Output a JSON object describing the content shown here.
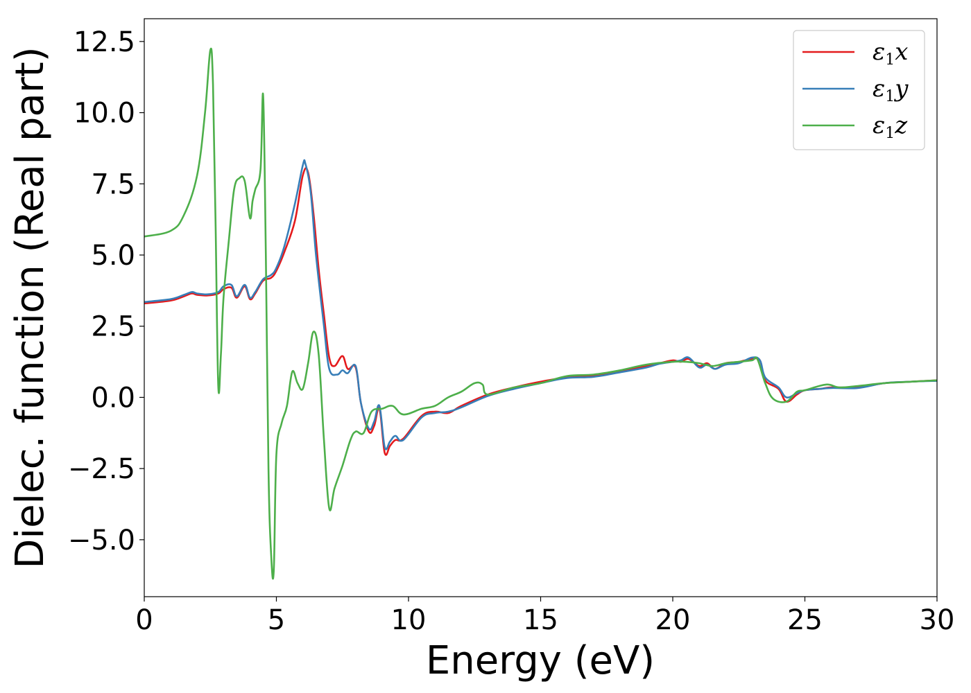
{
  "chart_data": {
    "type": "line",
    "xlabel": "Energy (eV)",
    "ylabel": "Dielec. function (Real part)",
    "xlim": [
      0,
      30
    ],
    "ylim": [
      -7.0,
      13.3
    ],
    "xticks": [
      0,
      5,
      10,
      15,
      20,
      25,
      30
    ],
    "xtick_labels": [
      "0",
      "5",
      "10",
      "15",
      "20",
      "25",
      "30"
    ],
    "yticks": [
      -5.0,
      -2.5,
      0.0,
      2.5,
      5.0,
      7.5,
      10.0,
      12.5
    ],
    "ytick_labels": [
      "−5.0",
      "−2.5",
      "0.0",
      "2.5",
      "5.0",
      "7.5",
      "10.0",
      "12.5"
    ],
    "grid": false,
    "legend_position": "top-right",
    "series": [
      {
        "name_base": "ε",
        "name_sub": "1",
        "name_tail": "x",
        "color": "#e41a1c",
        "x": [
          0,
          1.0,
          1.5,
          1.8,
          2.0,
          2.4,
          2.8,
          3.0,
          3.3,
          3.5,
          3.8,
          4.0,
          4.2,
          4.5,
          4.8,
          5.0,
          5.3,
          5.7,
          6.0,
          6.2,
          6.4,
          6.6,
          6.8,
          7.0,
          7.2,
          7.5,
          7.7,
          8.0,
          8.2,
          8.5,
          8.7,
          8.9,
          9.1,
          9.3,
          9.5,
          9.8,
          10.5,
          11.0,
          11.5,
          12.0,
          13.0,
          14.0,
          15.0,
          16.0,
          17.0,
          18.0,
          19.0,
          19.5,
          20.0,
          20.3,
          20.6,
          21.0,
          21.3,
          21.6,
          22.0,
          22.5,
          23.0,
          23.3,
          23.5,
          24.0,
          24.3,
          24.7,
          25.0,
          25.6,
          26.0,
          27.0,
          28.0,
          29.0,
          30.0
        ],
        "y": [
          3.3,
          3.4,
          3.55,
          3.65,
          3.6,
          3.58,
          3.65,
          3.8,
          3.85,
          3.5,
          3.9,
          3.45,
          3.65,
          4.1,
          4.2,
          4.45,
          5.1,
          6.2,
          7.8,
          7.9,
          6.5,
          4.5,
          2.9,
          1.4,
          1.1,
          1.45,
          1.0,
          1.05,
          -0.2,
          -1.2,
          -1.0,
          -0.4,
          -1.95,
          -1.7,
          -1.5,
          -1.45,
          -0.65,
          -0.5,
          -0.55,
          -0.3,
          0.1,
          0.35,
          0.55,
          0.7,
          0.75,
          0.9,
          1.1,
          1.2,
          1.3,
          1.25,
          1.35,
          1.1,
          1.2,
          1.0,
          1.2,
          1.25,
          1.35,
          1.3,
          0.6,
          0.3,
          -0.15,
          0.1,
          0.25,
          0.3,
          0.35,
          0.35,
          0.5,
          0.55,
          0.6
        ]
      },
      {
        "name_base": "ε",
        "name_sub": "1",
        "name_tail": "y",
        "color": "#377eb8",
        "x": [
          0,
          1.0,
          1.5,
          1.8,
          2.0,
          2.4,
          2.8,
          3.0,
          3.3,
          3.5,
          3.8,
          4.0,
          4.2,
          4.5,
          4.8,
          5.0,
          5.3,
          5.7,
          6.0,
          6.1,
          6.3,
          6.5,
          6.8,
          7.0,
          7.3,
          7.5,
          7.7,
          8.0,
          8.2,
          8.5,
          8.7,
          8.9,
          9.1,
          9.3,
          9.5,
          9.8,
          10.5,
          11.0,
          11.5,
          12.0,
          13.0,
          14.0,
          15.0,
          16.0,
          17.0,
          18.0,
          19.0,
          19.5,
          20.0,
          20.3,
          20.6,
          21.0,
          21.3,
          21.6,
          22.0,
          22.5,
          23.0,
          23.3,
          23.5,
          24.0,
          24.3,
          24.7,
          25.0,
          25.6,
          26.0,
          27.0,
          28.0,
          29.0,
          30.0
        ],
        "y": [
          3.35,
          3.45,
          3.6,
          3.7,
          3.65,
          3.62,
          3.7,
          3.9,
          3.95,
          3.55,
          3.95,
          3.5,
          3.7,
          4.15,
          4.3,
          4.55,
          5.3,
          6.8,
          8.15,
          8.2,
          7.2,
          5.0,
          2.5,
          1.0,
          0.8,
          0.95,
          0.85,
          1.1,
          -0.2,
          -1.1,
          -0.85,
          -0.3,
          -1.75,
          -1.55,
          -1.35,
          -1.5,
          -0.7,
          -0.55,
          -0.5,
          -0.35,
          0.05,
          0.3,
          0.5,
          0.68,
          0.72,
          0.88,
          1.05,
          1.18,
          1.25,
          1.3,
          1.4,
          1.05,
          1.15,
          1.0,
          1.15,
          1.2,
          1.4,
          1.3,
          0.7,
          0.35,
          0.0,
          0.15,
          0.25,
          0.3,
          0.33,
          0.33,
          0.5,
          0.55,
          0.58
        ]
      },
      {
        "name_base": "ε",
        "name_sub": "1",
        "name_tail": "z",
        "color": "#4daf4a",
        "x": [
          0,
          1.0,
          1.5,
          2.0,
          2.3,
          2.5,
          2.6,
          2.7,
          2.8,
          2.9,
          3.0,
          3.2,
          3.4,
          3.6,
          3.8,
          4.0,
          4.1,
          4.2,
          4.4,
          4.5,
          4.6,
          4.7,
          4.8,
          4.9,
          5.0,
          5.2,
          5.4,
          5.6,
          5.8,
          6.0,
          6.2,
          6.4,
          6.6,
          6.8,
          7.0,
          7.2,
          7.5,
          7.8,
          8.0,
          8.3,
          8.6,
          9.0,
          9.4,
          9.8,
          10.5,
          11.0,
          11.5,
          12.0,
          12.5,
          12.8,
          13.0,
          14.0,
          15.0,
          16.0,
          17.0,
          18.0,
          19.0,
          20.0,
          20.5,
          21.0,
          21.5,
          22.0,
          22.5,
          23.0,
          23.2,
          23.5,
          23.8,
          24.3,
          24.7,
          25.0,
          25.8,
          26.3,
          27.0,
          28.0,
          29.0,
          30.0
        ],
        "y": [
          5.65,
          5.85,
          6.4,
          7.8,
          10.0,
          12.2,
          11.0,
          6.0,
          0.4,
          1.5,
          3.5,
          5.5,
          7.3,
          7.7,
          7.6,
          6.3,
          6.9,
          7.3,
          8.0,
          10.6,
          5.0,
          -2.5,
          -5.5,
          -6.1,
          -2.0,
          -0.9,
          -0.3,
          0.9,
          0.5,
          0.3,
          1.2,
          2.3,
          1.5,
          -1.5,
          -3.9,
          -3.2,
          -2.4,
          -1.5,
          -1.2,
          -1.25,
          -0.5,
          -0.4,
          -0.3,
          -0.6,
          -0.4,
          -0.3,
          0.0,
          0.2,
          0.5,
          0.45,
          0.1,
          0.35,
          0.5,
          0.75,
          0.8,
          0.95,
          1.15,
          1.25,
          1.25,
          1.2,
          1.1,
          1.2,
          1.25,
          1.3,
          1.35,
          0.5,
          -0.05,
          -0.15,
          0.2,
          0.25,
          0.45,
          0.35,
          0.4,
          0.5,
          0.55,
          0.6
        ]
      }
    ]
  }
}
